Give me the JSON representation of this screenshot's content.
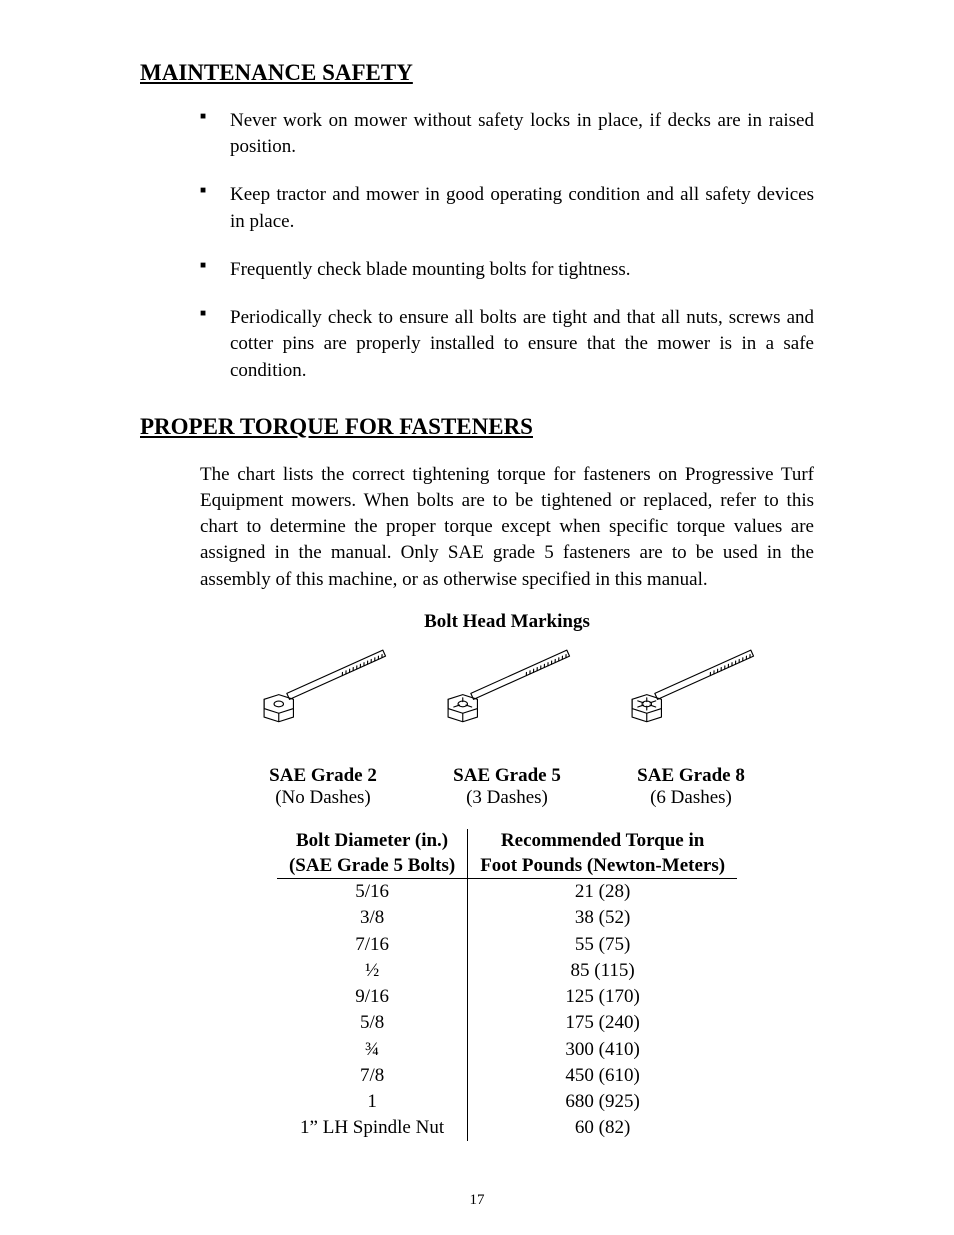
{
  "page_number": "17",
  "sections": {
    "maintenance": {
      "heading": "MAINTENANCE SAFETY",
      "bullets": [
        "Never work on mower without safety locks in place, if decks are in raised position.",
        "Keep tractor and mower in good operating condition and all safety devices in place.",
        "Frequently check blade mounting bolts for tightness.",
        "Periodically check to ensure all bolts are tight and that all nuts, screws and cotter pins are properly installed to ensure that the mower is in a safe condition."
      ]
    },
    "torque": {
      "heading": "PROPER TORQUE FOR FASTENERS",
      "paragraph": "The chart lists the correct tightening torque for fasteners on Progressive Turf Equipment mowers.  When bolts are to be tightened or replaced, refer to this chart to determine the proper torque except when specific torque values are assigned in the manual.  Only SAE grade 5 fasteners are to be used in the assembly of this machine, or as otherwise specified in this manual.",
      "bolt_diagram": {
        "title": "Bolt Head Markings",
        "items": [
          {
            "label": "SAE Grade 2",
            "sublabel": "(No Dashes)",
            "dashes": 0
          },
          {
            "label": "SAE Grade 5",
            "sublabel": "(3 Dashes)",
            "dashes": 3
          },
          {
            "label": "SAE Grade 8",
            "sublabel": "(6 Dashes)",
            "dashes": 6
          }
        ]
      },
      "table": {
        "col1_line1": "Bolt Diameter (in.)",
        "col1_line2": "(SAE Grade 5 Bolts)",
        "col2_line1": "Recommended Torque in",
        "col2_line2": "Foot Pounds (Newton-Meters)",
        "rows": [
          {
            "dia": "5/16",
            "torque": "21 (28)"
          },
          {
            "dia": "3/8",
            "torque": "38 (52)"
          },
          {
            "dia": "7/16",
            "torque": "55 (75)"
          },
          {
            "dia": "½",
            "torque": "85 (115)"
          },
          {
            "dia": "9/16",
            "torque": "125 (170)"
          },
          {
            "dia": "5/8",
            "torque": "175 (240)"
          },
          {
            "dia": "¾",
            "torque": "300 (410)"
          },
          {
            "dia": "7/8",
            "torque": "450 (610)"
          },
          {
            "dia": "1",
            "torque": "680 (925)"
          },
          {
            "dia": "1” LH Spindle Nut",
            "torque": "60 (82)"
          }
        ]
      }
    }
  },
  "style": {
    "stroke": "#000000",
    "stroke_width": 1.2
  }
}
